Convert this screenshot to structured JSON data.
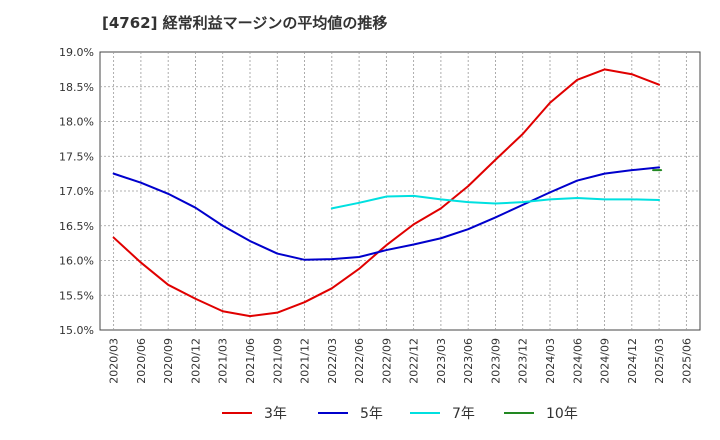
{
  "chart_data": {
    "type": "line",
    "title": "[4762]  経常利益マージンの平均値の推移",
    "xlabel": "",
    "ylabel": "",
    "x": [
      "2020/03",
      "2020/06",
      "2020/09",
      "2020/12",
      "2021/03",
      "2021/06",
      "2021/09",
      "2021/12",
      "2022/03",
      "2022/06",
      "2022/09",
      "2022/12",
      "2023/03",
      "2023/06",
      "2023/09",
      "2023/12",
      "2024/03",
      "2024/06",
      "2024/09",
      "2024/12",
      "2025/03",
      "2025/06"
    ],
    "y_ticks": [
      "19.0%",
      "18.5%",
      "18.0%",
      "17.5%",
      "17.0%",
      "16.5%",
      "16.0%",
      "15.5%",
      "15.0%"
    ],
    "ylim": [
      15.0,
      19.0
    ],
    "grid": true,
    "legend_position": "bottom",
    "series": [
      {
        "name": "3年",
        "color": "#e00000",
        "values": [
          16.33,
          15.97,
          15.65,
          15.45,
          15.27,
          15.2,
          15.25,
          15.4,
          15.6,
          15.88,
          16.22,
          16.52,
          16.75,
          17.07,
          17.45,
          17.82,
          18.27,
          18.6,
          18.75,
          18.68,
          18.53,
          null
        ]
      },
      {
        "name": "5年",
        "color": "#0000cc",
        "values": [
          17.25,
          17.12,
          16.96,
          16.76,
          16.5,
          16.28,
          16.1,
          16.01,
          16.02,
          16.05,
          16.15,
          16.23,
          16.32,
          16.45,
          16.62,
          16.8,
          16.98,
          17.15,
          17.25,
          17.3,
          17.34,
          null
        ]
      },
      {
        "name": "7年",
        "color": "#00e0e0",
        "values": [
          null,
          null,
          null,
          null,
          null,
          null,
          null,
          null,
          16.75,
          16.83,
          16.92,
          16.93,
          16.88,
          16.84,
          16.82,
          16.84,
          16.88,
          16.9,
          16.88,
          16.88,
          16.87,
          null
        ]
      },
      {
        "name": "10年",
        "color": "#228822",
        "values": [
          null,
          null,
          null,
          null,
          null,
          null,
          null,
          null,
          null,
          null,
          null,
          null,
          null,
          null,
          null,
          null,
          null,
          null,
          null,
          null,
          17.3,
          null
        ]
      }
    ]
  }
}
